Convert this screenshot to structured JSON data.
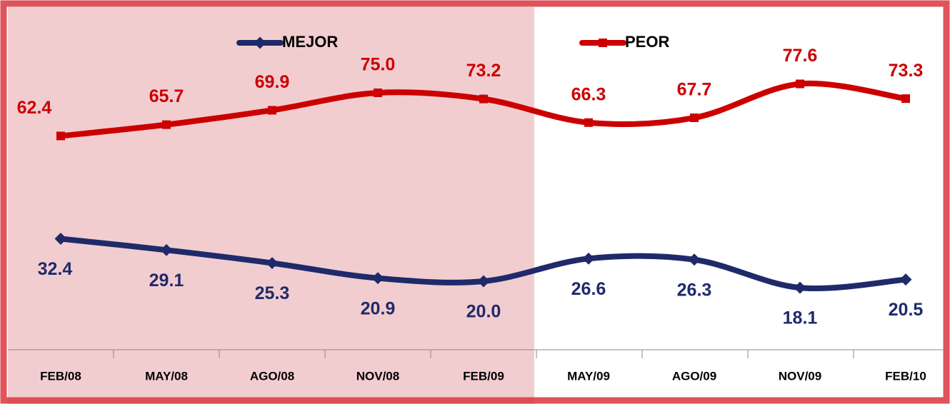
{
  "chart_data": {
    "type": "line",
    "categories": [
      "FEB/08",
      "MAY/08",
      "AGO/08",
      "NOV/08",
      "FEB/09",
      "MAY/09",
      "AGO/09",
      "NOV/09",
      "FEB/10"
    ],
    "series": [
      {
        "name": "MEJOR",
        "color": "#1f2a6b",
        "values": [
          32.4,
          29.1,
          25.3,
          20.9,
          20.0,
          26.6,
          26.3,
          18.1,
          20.5
        ],
        "value_labels": [
          "32.4",
          "29.1",
          "25.3",
          "20.9",
          "20.0",
          "26.6",
          "26.3",
          "18.1",
          "20.5"
        ]
      },
      {
        "name": "PEOR",
        "color": "#cc0000",
        "values": [
          62.4,
          65.7,
          69.9,
          75.0,
          73.2,
          66.3,
          67.7,
          77.6,
          73.3
        ],
        "value_labels": [
          "62.4",
          "65.7",
          "69.9",
          "75.0",
          "73.2",
          "66.3",
          "67.7",
          "77.6",
          "73.3"
        ]
      }
    ],
    "ylim": [
      0,
      100
    ]
  }
}
